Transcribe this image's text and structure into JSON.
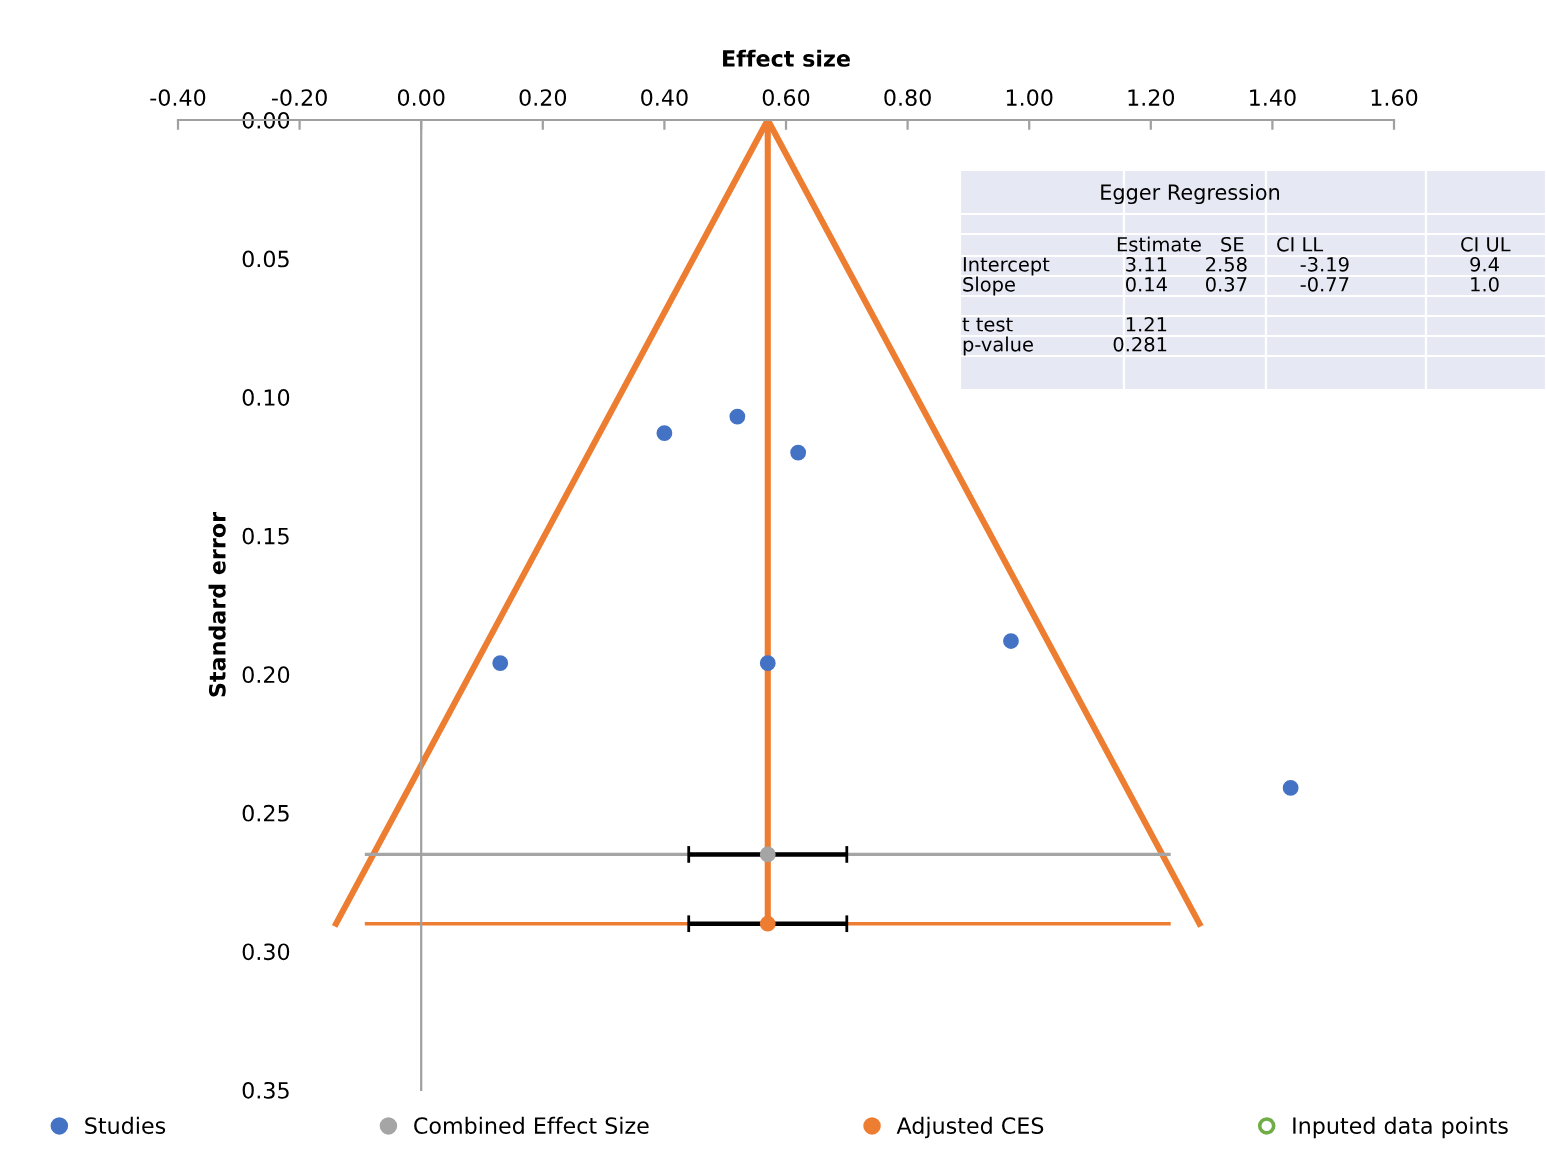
{
  "chart_data": [
    {
      "type": "scatter",
      "xlabel": "Effect size",
      "ylabel": "Standard error",
      "xlim": [
        -0.4,
        1.6
      ],
      "xticks": [
        {
          "value": -0.4,
          "label": "-0.40"
        },
        {
          "value": -0.2,
          "label": "-0.20"
        },
        {
          "value": 0,
          "label": "0.00"
        },
        {
          "value": 0.2,
          "label": "0.20"
        },
        {
          "value": 0.4,
          "label": "0.40"
        },
        {
          "value": 0.6,
          "label": "0.60"
        },
        {
          "value": 0.8,
          "label": "0.80"
        },
        {
          "value": 1.0,
          "label": "1.00"
        },
        {
          "value": 1.2,
          "label": "1.20"
        },
        {
          "value": 1.4,
          "label": "1.40"
        },
        {
          "value": 1.6,
          "label": "1.60"
        }
      ],
      "ylim": [
        0.35,
        0
      ],
      "yticks": [
        {
          "value": 0,
          "label": "0.00"
        },
        {
          "value": 0.05,
          "label": "0.05"
        },
        {
          "value": 0.1,
          "label": "0.10"
        },
        {
          "value": 0.15,
          "label": "0.15"
        },
        {
          "value": 0.2,
          "label": "0.20"
        },
        {
          "value": 0.25,
          "label": "0.25"
        },
        {
          "value": 0.3,
          "label": "0.30"
        },
        {
          "value": 0.35,
          "label": "0.35"
        }
      ],
      "grid": false,
      "legend": "bottom",
      "marker": "circle",
      "series": [
        {
          "type": "line",
          "color": "#ed7d31",
          "x": [
            -0.14,
            0.57,
            1.28
          ],
          "values": [
            0.29,
            0,
            0.29
          ],
          "marker": "none"
        },
        {
          "type": "line",
          "color": "#ed7d31",
          "x": [
            0.57,
            0.57
          ],
          "values": [
            0,
            0.29
          ],
          "marker": "none"
        },
        {
          "name": "Studies",
          "type": "scatter",
          "color": "#4472c4",
          "x": [
            0.4,
            0.52,
            0.62,
            0.13,
            0.57,
            0.97,
            1.43
          ],
          "values": [
            0.113,
            0.107,
            0.12,
            0.196,
            0.196,
            0.188,
            0.241
          ]
        },
        {
          "type": "line",
          "color": "#a5a5a5",
          "x": [
            -0.09,
            1.23
          ],
          "values": [
            0.265,
            0.265
          ],
          "marker": "none"
        },
        {
          "type": "line",
          "color": "#ed7d31",
          "x": [
            -0.09,
            1.23
          ],
          "values": [
            0.29,
            0.29
          ],
          "marker": "none"
        },
        {
          "name": "Combined Effect Size",
          "type": "scatter",
          "color": "#a5a5a5",
          "x": [
            0.57
          ],
          "values": [
            0.265
          ],
          "xerrors": [
            [
              0.44,
              0.7
            ]
          ]
        },
        {
          "name": "Adjusted CES",
          "type": "scatter",
          "color": "#ed7d31",
          "x": [
            0.57
          ],
          "values": [
            0.29
          ],
          "xerrors": [
            [
              0.44,
              0.7
            ]
          ]
        },
        {
          "name": "Inputed data points",
          "type": "scatter",
          "color": "#70ad47"
        }
      ]
    },
    {
      "type": "other",
      "title": "Egger Regression",
      "categories": [
        "Estimate",
        "SE",
        "CI LL",
        "CI UL"
      ],
      "y_categories": [
        "Intercept",
        "Slope",
        null,
        "t test",
        "p-value"
      ],
      "cell_labels": [
        [
          "3.11",
          "2.58",
          "-3.19",
          "9.4"
        ],
        [
          "0.14",
          "0.37",
          "-0.77",
          "1.0"
        ],
        [
          null,
          null,
          null,
          null
        ],
        [
          "1.21",
          null,
          null,
          null
        ],
        [
          "0.281",
          null,
          null,
          null
        ]
      ]
    }
  ]
}
